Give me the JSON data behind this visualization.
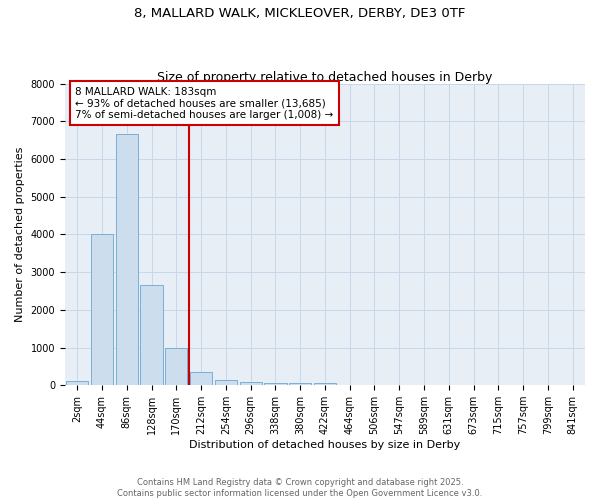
{
  "title_line1": "8, MALLARD WALK, MICKLEOVER, DERBY, DE3 0TF",
  "title_line2": "Size of property relative to detached houses in Derby",
  "xlabel": "Distribution of detached houses by size in Derby",
  "ylabel": "Number of detached properties",
  "bar_labels": [
    "2sqm",
    "44sqm",
    "86sqm",
    "128sqm",
    "170sqm",
    "212sqm",
    "254sqm",
    "296sqm",
    "338sqm",
    "380sqm",
    "422sqm",
    "464sqm",
    "506sqm",
    "547sqm",
    "589sqm",
    "631sqm",
    "673sqm",
    "715sqm",
    "757sqm",
    "799sqm",
    "841sqm"
  ],
  "bar_values": [
    100,
    4000,
    6650,
    2650,
    1000,
    350,
    150,
    80,
    50,
    50,
    50,
    0,
    0,
    0,
    0,
    0,
    0,
    0,
    0,
    0,
    0
  ],
  "bar_color": "#ccdded",
  "bar_edge_color": "#7bafd4",
  "ylim": [
    0,
    8000
  ],
  "yticks": [
    0,
    1000,
    2000,
    3000,
    4000,
    5000,
    6000,
    7000,
    8000
  ],
  "red_line_x": 4.5,
  "annotation_text": "8 MALLARD WALK: 183sqm\n← 93% of detached houses are smaller (13,685)\n7% of semi-detached houses are larger (1,008) →",
  "annotation_box_color": "#cc0000",
  "grid_color": "#c8d8e8",
  "background_color": "#e8eef5",
  "footer_line1": "Contains HM Land Registry data © Crown copyright and database right 2025.",
  "footer_line2": "Contains public sector information licensed under the Open Government Licence v3.0.",
  "title_fontsize": 9.5,
  "subtitle_fontsize": 9,
  "axis_label_fontsize": 8,
  "tick_fontsize": 7,
  "annotation_fontsize": 7.5,
  "footer_fontsize": 6
}
